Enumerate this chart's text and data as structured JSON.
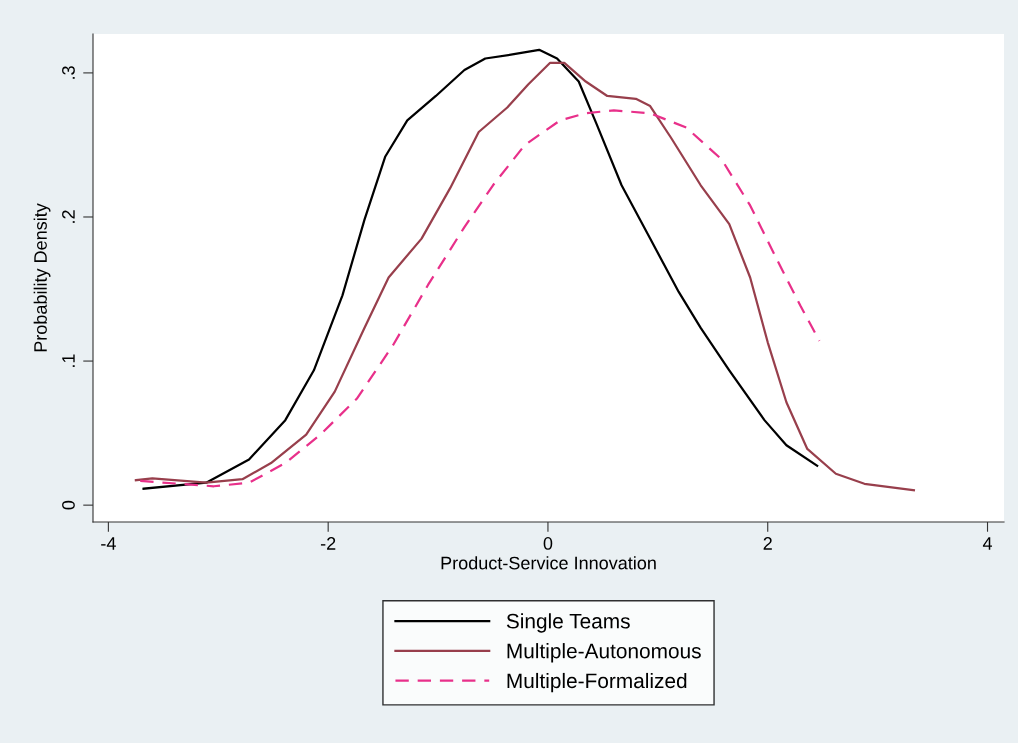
{
  "chart_data": {
    "type": "line",
    "xlabel": "Product-Service Innovation",
    "ylabel": "Probability Density",
    "xlim": [
      -4.14,
      4.15
    ],
    "ylim": [
      -0.0117,
      0.327
    ],
    "xticks": [
      -4,
      -2,
      0,
      2,
      4
    ],
    "yticks": [
      {
        "value": 0,
        "label": "0"
      },
      {
        "value": 0.1,
        "label": ".1"
      },
      {
        "value": 0.2,
        "label": ".2"
      },
      {
        "value": 0.3,
        "label": ".3"
      }
    ],
    "grid": false,
    "legend": "bottom",
    "marker": "none",
    "series": [
      {
        "name": "Single Teams",
        "color": "#000000",
        "line_style": "solid",
        "x": [
          -3.68,
          -3.11,
          -2.72,
          -2.39,
          -2.13,
          -1.87,
          -1.67,
          -1.48,
          -1.28,
          -1.02,
          -0.76,
          -0.57,
          -0.31,
          -0.08,
          0.083,
          0.28,
          0.44,
          0.67,
          0.93,
          1.19,
          1.39,
          1.65,
          1.97,
          2.17,
          2.45
        ],
        "values": [
          0.0114,
          0.0156,
          0.0317,
          0.059,
          0.0936,
          0.1456,
          0.198,
          0.242,
          0.267,
          0.284,
          0.302,
          0.31,
          0.313,
          0.316,
          0.31,
          0.294,
          0.265,
          0.222,
          0.185,
          0.148,
          0.123,
          0.0936,
          0.059,
          0.0416,
          0.0273
        ]
      },
      {
        "name": "Multiple-Autonomous",
        "color": "#983f4c",
        "line_style": "solid",
        "x": [
          -3.75,
          -3.6,
          -3.11,
          -2.78,
          -2.52,
          -2.2,
          -1.94,
          -1.67,
          -1.45,
          -1.15,
          -0.89,
          -0.63,
          -0.37,
          -0.18,
          0.02,
          0.149,
          0.344,
          0.54,
          0.8,
          0.93,
          1.12,
          1.39,
          1.65,
          1.84,
          2.0,
          2.17,
          2.36,
          2.62,
          2.88,
          3.33
        ],
        "values": [
          0.0173,
          0.0186,
          0.0156,
          0.018,
          0.0292,
          0.049,
          0.0788,
          0.123,
          0.158,
          0.185,
          0.22,
          0.259,
          0.276,
          0.292,
          0.307,
          0.307,
          0.294,
          0.284,
          0.282,
          0.277,
          0.255,
          0.222,
          0.195,
          0.158,
          0.113,
          0.0714,
          0.039,
          0.0218,
          0.0148,
          0.0104
        ]
      },
      {
        "name": "Multiple-Formalized",
        "color": "#e8308a",
        "line_style": "dashed",
        "x": [
          -3.71,
          -3.04,
          -2.72,
          -2.39,
          -2.07,
          -1.74,
          -1.41,
          -1.09,
          -0.76,
          -0.5,
          -0.21,
          0.11,
          0.344,
          0.6,
          0.93,
          1.26,
          1.58,
          1.84,
          2.1,
          2.3,
          2.47
        ],
        "values": [
          0.0168,
          0.0131,
          0.0156,
          0.0292,
          0.049,
          0.0738,
          0.111,
          0.153,
          0.193,
          0.222,
          0.25,
          0.267,
          0.272,
          0.274,
          0.272,
          0.262,
          0.24,
          0.208,
          0.168,
          0.138,
          0.114
        ]
      }
    ]
  }
}
